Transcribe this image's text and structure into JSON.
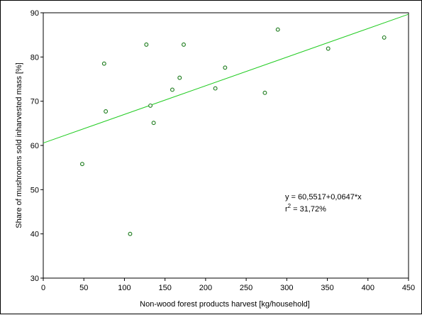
{
  "chart_data": {
    "type": "scatter",
    "title": "",
    "xlabel": "Non-wood forest products harvest [kg/household]",
    "ylabel": "Share of mushrooms sold inharvested mass [%]",
    "xlim": [
      0,
      450
    ],
    "ylim": [
      30,
      90
    ],
    "xticks": [
      0,
      50,
      100,
      150,
      200,
      250,
      300,
      350,
      400,
      450
    ],
    "yticks": [
      30,
      40,
      50,
      60,
      70,
      80,
      90
    ],
    "grid": false,
    "legend": "none",
    "colors": {
      "points": "#1a7a1a",
      "line": "#22cc22",
      "axis": "#000000"
    },
    "points": [
      {
        "x": 48,
        "y": 55.8
      },
      {
        "x": 75,
        "y": 78.5
      },
      {
        "x": 77,
        "y": 67.7
      },
      {
        "x": 107,
        "y": 40.0
      },
      {
        "x": 127,
        "y": 82.8
      },
      {
        "x": 132,
        "y": 69.0
      },
      {
        "x": 136,
        "y": 65.1
      },
      {
        "x": 159,
        "y": 72.6
      },
      {
        "x": 168,
        "y": 75.3
      },
      {
        "x": 173,
        "y": 82.8
      },
      {
        "x": 212,
        "y": 72.9
      },
      {
        "x": 224,
        "y": 77.6
      },
      {
        "x": 273,
        "y": 71.9
      },
      {
        "x": 289,
        "y": 86.2
      },
      {
        "x": 351,
        "y": 81.9
      },
      {
        "x": 420,
        "y": 84.4
      }
    ],
    "fit_line": {
      "intercept": 60.5517,
      "slope": 0.0647
    },
    "annotation": {
      "equation": "y = 60,5517+0,0647*x",
      "r2_prefix": "r",
      "r2_sup": "2",
      "r2_value": "= 31,72%"
    }
  }
}
